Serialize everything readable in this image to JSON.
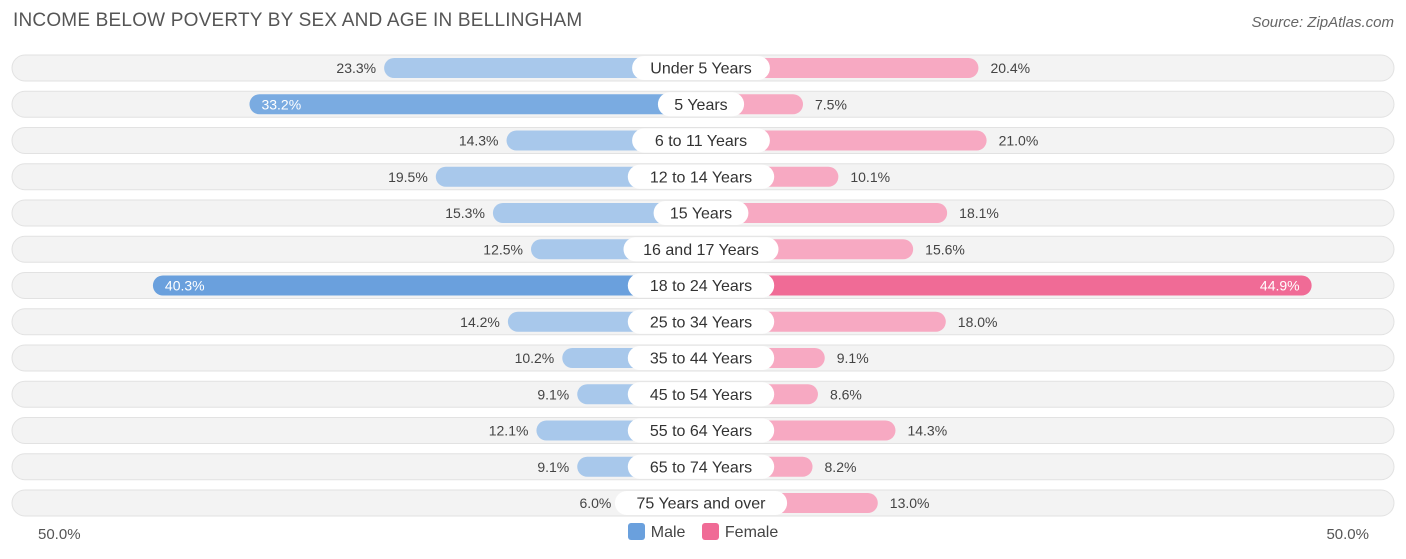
{
  "title": "INCOME BELOW POVERTY BY SEX AND AGE IN BELLINGHAM",
  "source": "Source: ZipAtlas.com",
  "colors": {
    "male": "#6aa0dd",
    "male_light": "#a8c8eb",
    "female": "#f06b96",
    "female_light": "#f7a9c2",
    "track": "#f1f1f1"
  },
  "chart_data": {
    "type": "bar",
    "orientation": "horizontal-diverging",
    "title": "INCOME BELOW POVERTY BY SEX AND AGE IN BELLINGHAM",
    "categories": [
      "Under 5 Years",
      "5 Years",
      "6 to 11 Years",
      "12 to 14 Years",
      "15 Years",
      "16 and 17 Years",
      "18 to 24 Years",
      "25 to 34 Years",
      "35 to 44 Years",
      "45 to 54 Years",
      "55 to 64 Years",
      "65 to 74 Years",
      "75 Years and over"
    ],
    "series": [
      {
        "name": "Male",
        "values": [
          23.3,
          33.2,
          14.3,
          19.5,
          15.3,
          12.5,
          40.3,
          14.2,
          10.2,
          9.1,
          12.1,
          9.1,
          6.0
        ],
        "labels": [
          "23.3%",
          "33.2%",
          "14.3%",
          "19.5%",
          "15.3%",
          "12.5%",
          "40.3%",
          "14.2%",
          "10.2%",
          "9.1%",
          "12.1%",
          "9.1%",
          "6.0%"
        ]
      },
      {
        "name": "Female",
        "values": [
          20.4,
          7.5,
          21.0,
          10.1,
          18.1,
          15.6,
          44.9,
          18.0,
          9.1,
          8.6,
          14.3,
          8.2,
          13.0
        ],
        "labels": [
          "20.4%",
          "7.5%",
          "21.0%",
          "10.1%",
          "18.1%",
          "15.6%",
          "44.9%",
          "18.0%",
          "9.1%",
          "8.6%",
          "14.3%",
          "8.2%",
          "13.0%"
        ]
      }
    ],
    "xlim": [
      -50,
      50
    ],
    "axis_labels": {
      "left": "50.0%",
      "right": "50.0%"
    },
    "legend": {
      "position": "bottom-center",
      "entries": [
        "Male",
        "Female"
      ]
    },
    "grid": false
  }
}
